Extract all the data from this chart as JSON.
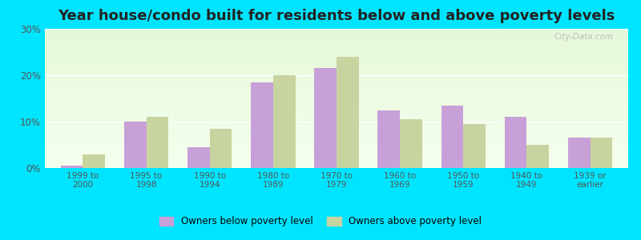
{
  "title": "Year house/condo built for residents below and above poverty levels",
  "categories": [
    "1999 to\n2000",
    "1995 to\n1998",
    "1990 to\n1994",
    "1980 to\n1989",
    "1970 to\n1979",
    "1960 to\n1969",
    "1950 to\n1959",
    "1940 to\n1949",
    "1939 or\nearlier"
  ],
  "below_poverty": [
    0.5,
    10.0,
    4.5,
    18.5,
    21.5,
    12.5,
    13.5,
    11.0,
    6.5
  ],
  "above_poverty": [
    3.0,
    11.0,
    8.5,
    20.0,
    24.0,
    10.5,
    9.5,
    5.0,
    6.5
  ],
  "below_color": "#c8a0d8",
  "above_color": "#c8d4a0",
  "ylim": [
    0,
    30
  ],
  "yticks": [
    0,
    10,
    20,
    30
  ],
  "ytick_labels": [
    "0%",
    "10%",
    "20%",
    "30%"
  ],
  "outer_bg": "#00e5ff",
  "legend_below": "Owners below poverty level",
  "legend_above": "Owners above poverty level",
  "title_fontsize": 13,
  "bar_width": 0.35,
  "watermark": "City-Data.com"
}
